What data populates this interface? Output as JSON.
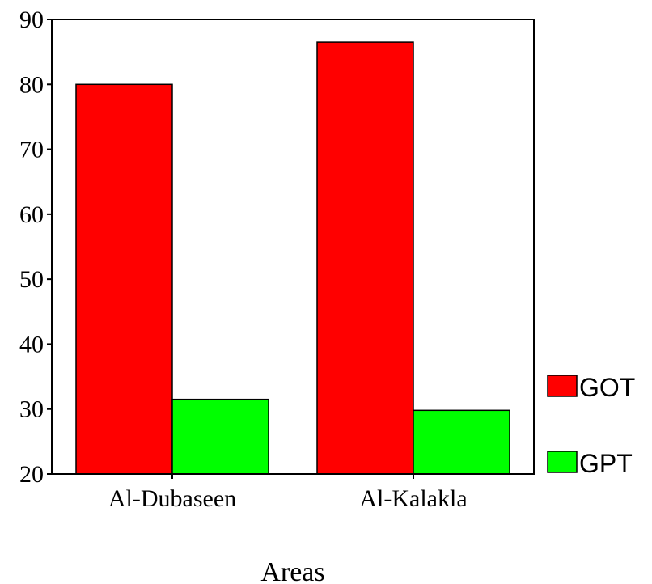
{
  "chart_data": {
    "type": "bar",
    "categories": [
      "Al-Dubaseen",
      "Al-Kalakla"
    ],
    "series": [
      {
        "name": "GOT",
        "values": [
          80,
          86.5
        ],
        "color": "#ff0000"
      },
      {
        "name": "GPT",
        "values": [
          31.5,
          29.8
        ],
        "color": "#00ff00"
      }
    ],
    "xlabel": "Areas",
    "ylabel": "",
    "ylim": [
      20,
      90
    ],
    "yticks": [
      20,
      30,
      40,
      50,
      60,
      70,
      80,
      90
    ],
    "grid": false,
    "legend": "right"
  }
}
